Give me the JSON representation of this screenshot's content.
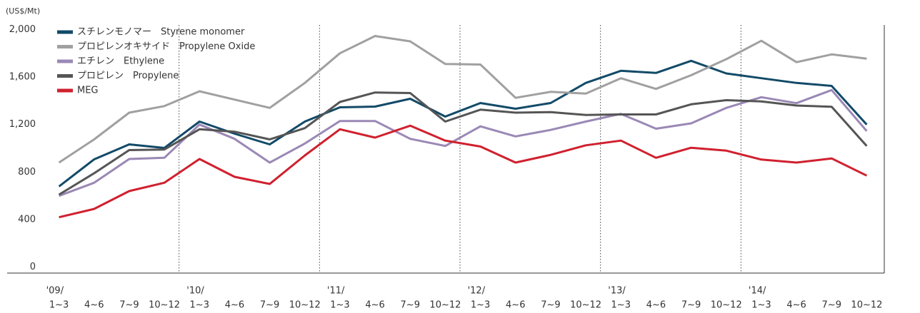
{
  "chart_data": {
    "type": "line",
    "y_unit_label": "(US$/Mt)",
    "categories": [
      "1~3",
      "4~6",
      "7~9",
      "10~12",
      "1~3",
      "4~6",
      "7~9",
      "10~12",
      "1~3",
      "4~6",
      "7~9",
      "10~12",
      "1~3",
      "4~6",
      "7~9",
      "10~12",
      "1~3",
      "4~6",
      "7~9",
      "10~12",
      "1~3",
      "4~6",
      "7~9",
      "10~12"
    ],
    "year_labels": [
      "'09/",
      null,
      null,
      null,
      "'10/",
      null,
      null,
      null,
      "'11/",
      null,
      null,
      null,
      "'12/",
      null,
      null,
      null,
      "'13/",
      null,
      null,
      null,
      "'14/",
      null,
      null,
      null
    ],
    "ylim": [
      -50,
      2050
    ],
    "yticks": [
      0,
      400,
      800,
      {
        "value": 1200,
        "label": "1,200"
      },
      {
        "value": 1600,
        "label": "1,600"
      },
      {
        "value": 2000,
        "label": "2,000"
      }
    ],
    "grid": false,
    "legend": "top-left",
    "series": [
      {
        "name": "スチレンモノマー　Styrene monomer",
        "color": "#124a68",
        "values": [
          679,
          907,
          1033,
          1003,
          1225,
          1123,
          1033,
          1225,
          1345,
          1351,
          1417,
          1267,
          1381,
          1333,
          1381,
          1550,
          1652,
          1634,
          1736,
          1630,
          1590,
          1550,
          1525,
          1200
        ]
      },
      {
        "name": "プロピレンオキサイド　Propylene Oxide",
        "color": "#a0a0a0",
        "values": [
          880,
          1075,
          1300,
          1355,
          1480,
          1410,
          1340,
          1550,
          1800,
          1945,
          1900,
          1710,
          1705,
          1425,
          1475,
          1460,
          1590,
          1500,
          1615,
          1750,
          1905,
          1725,
          1790,
          1755
        ]
      },
      {
        "name": "エチレン　Ethylene",
        "color": "#9a88b5",
        "values": [
          600,
          710,
          910,
          920,
          1200,
          1080,
          880,
          1040,
          1230,
          1230,
          1080,
          1020,
          1185,
          1100,
          1155,
          1225,
          1290,
          1165,
          1210,
          1340,
          1430,
          1380,
          1490,
          1145
        ]
      },
      {
        "name": "プロピレン　Propylene",
        "color": "#555555",
        "values": [
          610,
          790,
          985,
          990,
          1160,
          1140,
          1075,
          1170,
          1390,
          1470,
          1465,
          1225,
          1325,
          1300,
          1305,
          1280,
          1285,
          1285,
          1370,
          1405,
          1395,
          1360,
          1350,
          1020
        ]
      },
      {
        "name": "MEG",
        "color": "#d0202e",
        "values": [
          420,
          490,
          640,
          710,
          910,
          760,
          700,
          940,
          1160,
          1090,
          1190,
          1065,
          1015,
          880,
          945,
          1025,
          1065,
          920,
          1005,
          980,
          905,
          880,
          915,
          770
        ]
      }
    ]
  }
}
